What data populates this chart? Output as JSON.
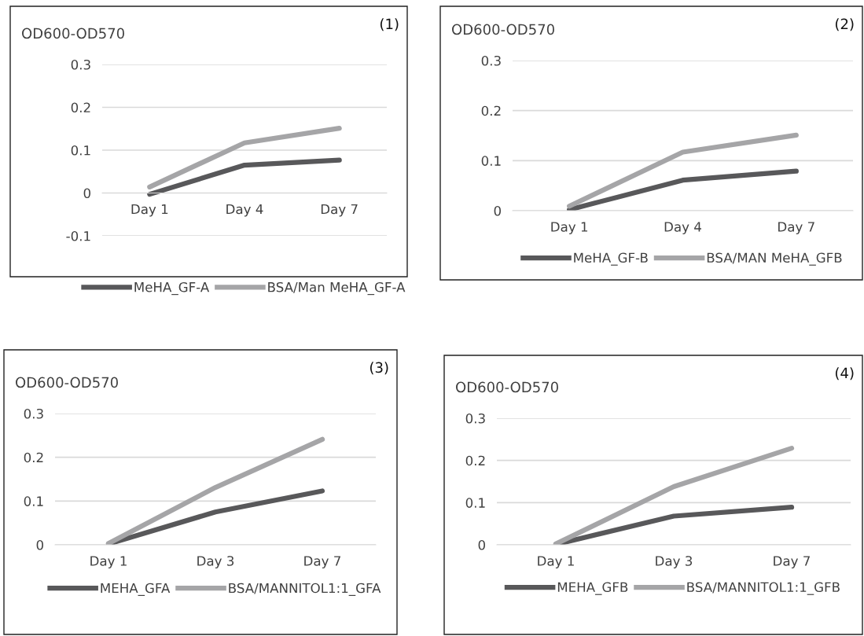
{
  "chart_data": [
    {
      "type": "line",
      "ylabel": "OD600-OD570",
      "annotations": [
        "(1)"
      ],
      "categories": [
        "Day 1",
        "Day 4",
        "Day 7"
      ],
      "ylim": [
        -0.1,
        0.3
      ],
      "yticks": [
        -0.1,
        0,
        0.1,
        0.2,
        0.3
      ],
      "grid": "y",
      "legend": "bottom",
      "marker": "none",
      "line_style": "solid",
      "series": [
        {
          "name": "MeHA_GF-A",
          "color": "#58585a",
          "values": [
            -0.003,
            0.065,
            0.077
          ]
        },
        {
          "name": "BSA/Man MeHA_GF-A",
          "color": "#a5a5a7",
          "values": [
            0.014,
            0.117,
            0.151
          ]
        }
      ]
    },
    {
      "type": "line",
      "ylabel": "OD600-OD570",
      "annotations": [
        "(2)"
      ],
      "categories": [
        "Day 1",
        "Day 4",
        "Day 7"
      ],
      "ylim": [
        0,
        0.3
      ],
      "yticks": [
        0,
        0.1,
        0.2,
        0.3
      ],
      "grid": "y",
      "legend": "bottom",
      "marker": "none",
      "line_style": "solid",
      "series": [
        {
          "name": "MeHA_GF-B",
          "color": "#58585a",
          "values": [
            0.002,
            0.061,
            0.079
          ]
        },
        {
          "name": "BSA/MAN MeHA_GFB",
          "color": "#a5a5a7",
          "values": [
            0.009,
            0.117,
            0.151
          ]
        }
      ]
    },
    {
      "type": "line",
      "ylabel": "OD600-OD570",
      "annotations": [
        "(3)"
      ],
      "categories": [
        "Day 1",
        "Day 3",
        "Day 7"
      ],
      "ylim": [
        0,
        0.3
      ],
      "yticks": [
        0,
        0.1,
        0.2,
        0.3
      ],
      "grid": "y",
      "legend": "bottom",
      "marker": "none",
      "line_style": "solid",
      "series": [
        {
          "name": "MEHA_GFA",
          "color": "#58585a",
          "values": [
            0.002,
            0.075,
            0.123
          ]
        },
        {
          "name": "BSA/MANNITOL1:1_GFA",
          "color": "#a5a5a7",
          "values": [
            0.003,
            0.131,
            0.241
          ]
        }
      ]
    },
    {
      "type": "line",
      "ylabel": "OD600-OD570",
      "annotations": [
        "(4)"
      ],
      "categories": [
        "Day 1",
        "Day 3",
        "Day 7"
      ],
      "ylim": [
        0,
        0.3
      ],
      "yticks": [
        0,
        0.1,
        0.2,
        0.3
      ],
      "grid": "y",
      "legend": "bottom",
      "marker": "none",
      "line_style": "solid",
      "series": [
        {
          "name": "MEHA_GFB",
          "color": "#58585a",
          "values": [
            0.001,
            0.068,
            0.089
          ]
        },
        {
          "name": "BSA/MANNITOL1:1_GFB",
          "color": "#a5a5a7",
          "values": [
            0.002,
            0.138,
            0.229
          ]
        }
      ]
    }
  ]
}
